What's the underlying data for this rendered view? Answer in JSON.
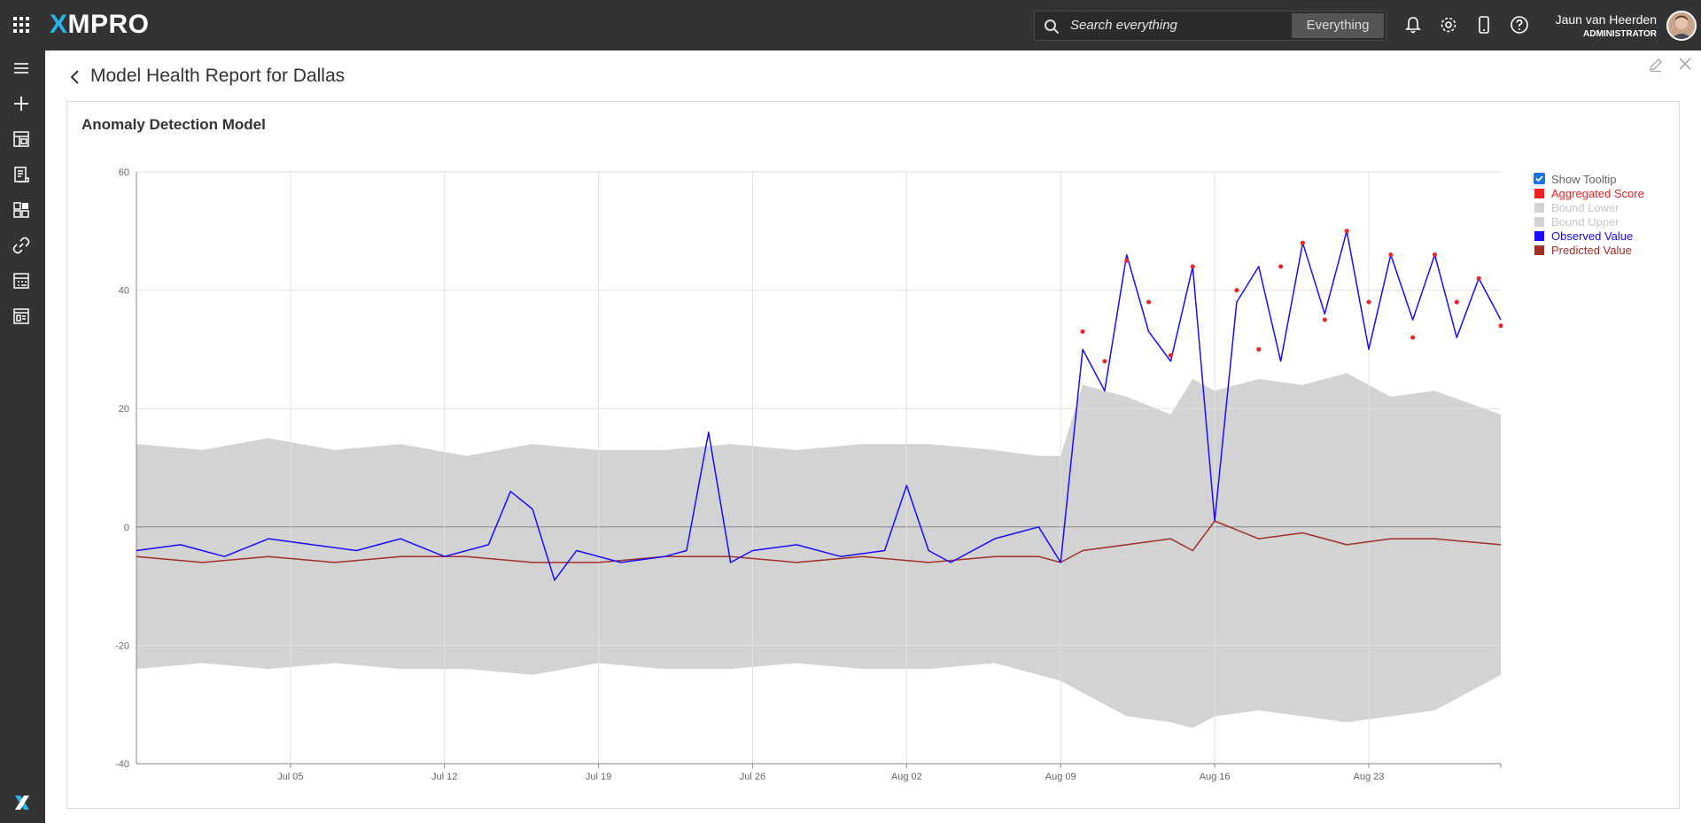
{
  "app": {
    "logo_text": "MPRO",
    "logo_x": "X"
  },
  "search": {
    "placeholder": "Search everything",
    "scope_label": "Everything"
  },
  "user": {
    "name": "Jaun van Heerden",
    "role": "ADMINISTRATOR"
  },
  "page": {
    "title": "Model Health Report for  Dallas"
  },
  "card": {
    "title": "Anomaly Detection Model"
  },
  "legend": {
    "show_tooltip": "Show Tooltip",
    "items": [
      {
        "label": "Aggregated Score",
        "color": "#ee2222",
        "text_color": "#ee2222"
      },
      {
        "label": "Bound Lower",
        "color": "#d3d3d3",
        "text_color": "#c8c8c8"
      },
      {
        "label": "Bound Upper",
        "color": "#d3d3d3",
        "text_color": "#c8c8c8"
      },
      {
        "label": "Observed Value",
        "color": "#1a0bff",
        "text_color": "#1a0bff"
      },
      {
        "label": "Predicted Value",
        "color": "#a0302a",
        "text_color": "#a0302a"
      }
    ]
  },
  "chart_data": {
    "type": "line",
    "title": "Anomaly Detection Model",
    "ylim": [
      -40,
      60
    ],
    "yticks": [
      -40,
      -20,
      0,
      20,
      40,
      60
    ],
    "xlim": [
      "2025-06-28",
      "2025-08-29"
    ],
    "x_tick_labels": [
      "Jul 05",
      "Jul 12",
      "Jul 19",
      "Jul 26",
      "Aug 02",
      "Aug 09",
      "Aug 16",
      "Aug 23"
    ],
    "x_tick_dates": [
      "2025-07-05",
      "2025-07-12",
      "2025-07-19",
      "2025-07-26",
      "2025-08-02",
      "2025-08-09",
      "2025-08-16",
      "2025-08-23"
    ],
    "grid": true,
    "legend_position": "right",
    "series": [
      {
        "name": "Bound Upper",
        "x": [
          "2025-06-28",
          "2025-07-01",
          "2025-07-04",
          "2025-07-07",
          "2025-07-10",
          "2025-07-13",
          "2025-07-16",
          "2025-07-19",
          "2025-07-22",
          "2025-07-25",
          "2025-07-28",
          "2025-07-31",
          "2025-08-03",
          "2025-08-06",
          "2025-08-08",
          "2025-08-09",
          "2025-08-10",
          "2025-08-12",
          "2025-08-14",
          "2025-08-15",
          "2025-08-16",
          "2025-08-18",
          "2025-08-20",
          "2025-08-22",
          "2025-08-24",
          "2025-08-26",
          "2025-08-29"
        ],
        "values": [
          14,
          13,
          15,
          13,
          14,
          12,
          14,
          13,
          13,
          14,
          13,
          14,
          14,
          13,
          12,
          12,
          24,
          22,
          19,
          25,
          23,
          25,
          24,
          26,
          22,
          23,
          19
        ]
      },
      {
        "name": "Bound Lower",
        "x": [
          "2025-06-28",
          "2025-07-01",
          "2025-07-04",
          "2025-07-07",
          "2025-07-10",
          "2025-07-13",
          "2025-07-16",
          "2025-07-19",
          "2025-07-22",
          "2025-07-25",
          "2025-07-28",
          "2025-07-31",
          "2025-08-03",
          "2025-08-06",
          "2025-08-08",
          "2025-08-09",
          "2025-08-10",
          "2025-08-12",
          "2025-08-14",
          "2025-08-15",
          "2025-08-16",
          "2025-08-18",
          "2025-08-20",
          "2025-08-22",
          "2025-08-24",
          "2025-08-26",
          "2025-08-29"
        ],
        "values": [
          -24,
          -23,
          -24,
          -23,
          -24,
          -24,
          -25,
          -23,
          -24,
          -24,
          -23,
          -24,
          -24,
          -23,
          -25,
          -26,
          -28,
          -32,
          -33,
          -34,
          -32,
          -31,
          -32,
          -33,
          -32,
          -31,
          -25
        ]
      },
      {
        "name": "Observed Value",
        "x": [
          "2025-06-28",
          "2025-06-30",
          "2025-07-02",
          "2025-07-04",
          "2025-07-06",
          "2025-07-08",
          "2025-07-10",
          "2025-07-12",
          "2025-07-14",
          "2025-07-15",
          "2025-07-16",
          "2025-07-17",
          "2025-07-18",
          "2025-07-20",
          "2025-07-22",
          "2025-07-23",
          "2025-07-24",
          "2025-07-25",
          "2025-07-26",
          "2025-07-28",
          "2025-07-30",
          "2025-08-01",
          "2025-08-02",
          "2025-08-03",
          "2025-08-04",
          "2025-08-06",
          "2025-08-08",
          "2025-08-09",
          "2025-08-10",
          "2025-08-11",
          "2025-08-12",
          "2025-08-13",
          "2025-08-14",
          "2025-08-15",
          "2025-08-16",
          "2025-08-17",
          "2025-08-18",
          "2025-08-19",
          "2025-08-20",
          "2025-08-21",
          "2025-08-22",
          "2025-08-23",
          "2025-08-24",
          "2025-08-25",
          "2025-08-26",
          "2025-08-27",
          "2025-08-28",
          "2025-08-29"
        ],
        "values": [
          -4,
          -3,
          -5,
          -2,
          -3,
          -4,
          -2,
          -5,
          -3,
          6,
          3,
          -9,
          -4,
          -6,
          -5,
          -4,
          16,
          -6,
          -4,
          -3,
          -5,
          -4,
          7,
          -4,
          -6,
          -2,
          0,
          -6,
          30,
          23,
          46,
          33,
          28,
          44,
          1,
          38,
          44,
          28,
          48,
          36,
          50,
          30,
          46,
          35,
          46,
          32,
          42,
          35
        ]
      },
      {
        "name": "Predicted Value",
        "x": [
          "2025-06-28",
          "2025-07-01",
          "2025-07-04",
          "2025-07-07",
          "2025-07-10",
          "2025-07-13",
          "2025-07-16",
          "2025-07-19",
          "2025-07-22",
          "2025-07-25",
          "2025-07-28",
          "2025-07-31",
          "2025-08-03",
          "2025-08-06",
          "2025-08-08",
          "2025-08-09",
          "2025-08-10",
          "2025-08-12",
          "2025-08-14",
          "2025-08-15",
          "2025-08-16",
          "2025-08-18",
          "2025-08-20",
          "2025-08-22",
          "2025-08-24",
          "2025-08-26",
          "2025-08-29"
        ],
        "values": [
          -5,
          -6,
          -5,
          -6,
          -5,
          -5,
          -6,
          -6,
          -5,
          -5,
          -6,
          -5,
          -6,
          -5,
          -5,
          -6,
          -4,
          -3,
          -2,
          -4,
          1,
          -2,
          -1,
          -3,
          -2,
          -2,
          -3
        ]
      },
      {
        "name": "Aggregated Score",
        "x": [
          "2025-08-10",
          "2025-08-11",
          "2025-08-12",
          "2025-08-13",
          "2025-08-14",
          "2025-08-15",
          "2025-08-17",
          "2025-08-18",
          "2025-08-19",
          "2025-08-20",
          "2025-08-21",
          "2025-08-22",
          "2025-08-23",
          "2025-08-24",
          "2025-08-25",
          "2025-08-26",
          "2025-08-27",
          "2025-08-28",
          "2025-08-29"
        ],
        "values": [
          33,
          28,
          45,
          38,
          29,
          44,
          40,
          30,
          44,
          48,
          35,
          50,
          38,
          46,
          32,
          46,
          38,
          42,
          34
        ]
      }
    ]
  }
}
